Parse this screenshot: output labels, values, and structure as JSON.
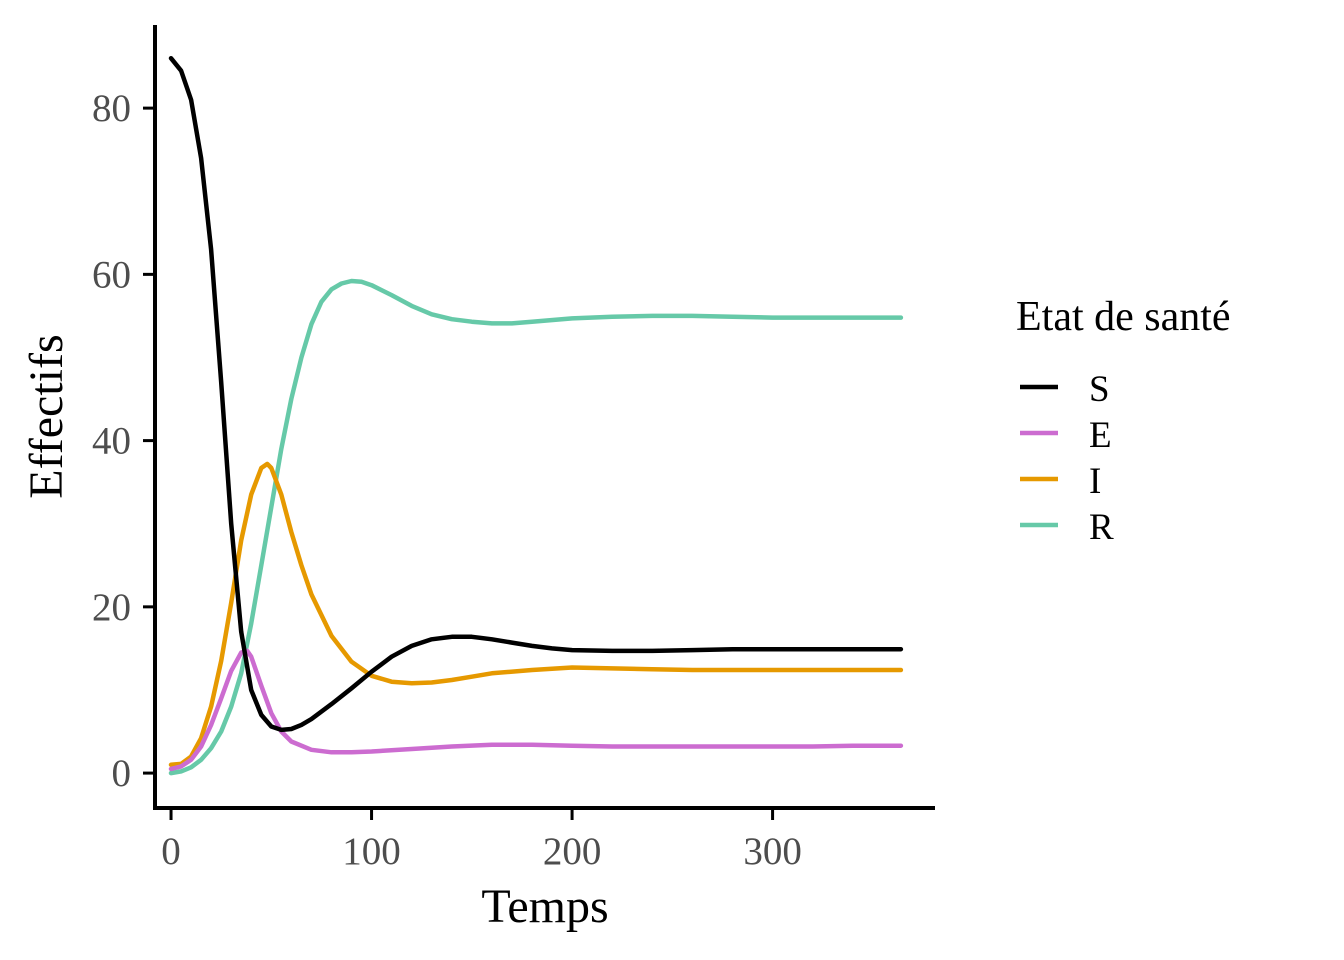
{
  "chart_data": {
    "type": "line",
    "title": "",
    "xlabel": "Temps",
    "ylabel": "Effectifs",
    "xlim": [
      -8,
      381
    ],
    "ylim": [
      -4.2,
      90
    ],
    "x_ticks": [
      0,
      100,
      200,
      300
    ],
    "y_ticks": [
      0,
      20,
      40,
      60,
      80
    ],
    "grid": false,
    "legend": {
      "title": "Etat de santé",
      "position": "right"
    },
    "series": [
      {
        "name": "S",
        "color": "#000000",
        "x": [
          0,
          5,
          10,
          15,
          20,
          25,
          30,
          35,
          40,
          45,
          50,
          55,
          60,
          65,
          70,
          80,
          90,
          100,
          110,
          120,
          130,
          140,
          150,
          160,
          170,
          180,
          190,
          200,
          220,
          240,
          260,
          280,
          300,
          320,
          340,
          364
        ],
        "y": [
          86,
          84.5,
          81,
          74,
          63,
          47,
          30,
          17,
          10,
          7,
          5.6,
          5.2,
          5.3,
          5.8,
          6.5,
          8.3,
          10.2,
          12.2,
          14.0,
          15.3,
          16.1,
          16.4,
          16.4,
          16.1,
          15.7,
          15.3,
          15.0,
          14.8,
          14.7,
          14.7,
          14.8,
          14.9,
          14.9,
          14.9,
          14.9,
          14.9
        ]
      },
      {
        "name": "E",
        "color": "#cc6cd0",
        "x": [
          0,
          5,
          10,
          15,
          20,
          25,
          30,
          35,
          38,
          40,
          45,
          50,
          55,
          60,
          70,
          80,
          90,
          100,
          120,
          140,
          160,
          180,
          200,
          220,
          240,
          260,
          280,
          300,
          320,
          340,
          364
        ],
        "y": [
          0.5,
          0.8,
          1.6,
          3.2,
          5.8,
          9.0,
          12.3,
          14.5,
          14.7,
          14.0,
          10.5,
          7.2,
          5.0,
          3.8,
          2.8,
          2.5,
          2.5,
          2.6,
          2.9,
          3.2,
          3.4,
          3.4,
          3.3,
          3.2,
          3.2,
          3.2,
          3.2,
          3.2,
          3.2,
          3.3,
          3.3
        ]
      },
      {
        "name": "I",
        "color": "#e69900",
        "x": [
          0,
          5,
          10,
          15,
          20,
          25,
          30,
          35,
          40,
          45,
          48,
          50,
          55,
          60,
          65,
          70,
          80,
          90,
          100,
          110,
          120,
          130,
          140,
          150,
          160,
          180,
          200,
          220,
          240,
          260,
          280,
          300,
          320,
          340,
          364
        ],
        "y": [
          1,
          1.1,
          2.0,
          4.2,
          8.0,
          13.5,
          20.5,
          28.0,
          33.5,
          36.7,
          37.2,
          36.7,
          33.5,
          29.0,
          25.0,
          21.5,
          16.5,
          13.4,
          11.7,
          11.0,
          10.8,
          10.9,
          11.2,
          11.6,
          12.0,
          12.4,
          12.7,
          12.6,
          12.5,
          12.4,
          12.4,
          12.4,
          12.4,
          12.4,
          12.4
        ]
      },
      {
        "name": "R",
        "color": "#66c9a8",
        "x": [
          0,
          5,
          10,
          15,
          20,
          25,
          30,
          35,
          40,
          45,
          50,
          55,
          60,
          65,
          70,
          75,
          80,
          85,
          90,
          95,
          100,
          110,
          120,
          130,
          140,
          150,
          160,
          170,
          180,
          200,
          220,
          240,
          260,
          280,
          300,
          320,
          340,
          364
        ],
        "y": [
          0,
          0.2,
          0.7,
          1.6,
          3.0,
          5.0,
          8.0,
          12.0,
          18.0,
          25.0,
          32.0,
          39.0,
          45.0,
          50.0,
          54.0,
          56.7,
          58.2,
          58.9,
          59.2,
          59.1,
          58.7,
          57.5,
          56.2,
          55.2,
          54.6,
          54.3,
          54.1,
          54.1,
          54.3,
          54.7,
          54.9,
          55.0,
          55.0,
          54.9,
          54.8,
          54.8,
          54.8,
          54.8
        ]
      }
    ]
  }
}
